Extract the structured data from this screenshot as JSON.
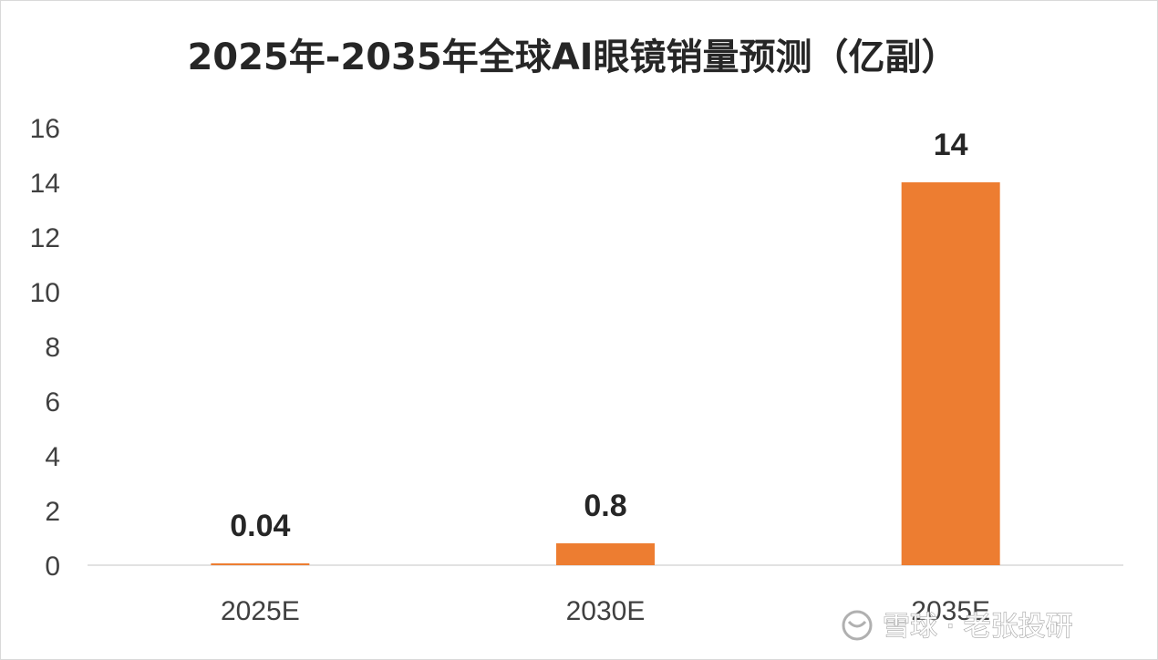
{
  "chart_data": {
    "type": "bar",
    "title": "2025年-2035年全球AI眼镜销量预测（亿副）",
    "categories": [
      "2025E",
      "2030E",
      "2035E"
    ],
    "values": [
      0.04,
      0.8,
      14
    ],
    "data_labels": [
      "0.04",
      "0.8",
      "14"
    ],
    "ylim": [
      0,
      16
    ],
    "yticks": [
      0,
      2,
      4,
      6,
      8,
      10,
      12,
      14,
      16
    ],
    "xlabel": "",
    "ylabel": "",
    "grid": false,
    "legend": "none",
    "bar_color": "#ED7D31"
  },
  "watermark": {
    "text": "雪球 · 老张投研"
  }
}
